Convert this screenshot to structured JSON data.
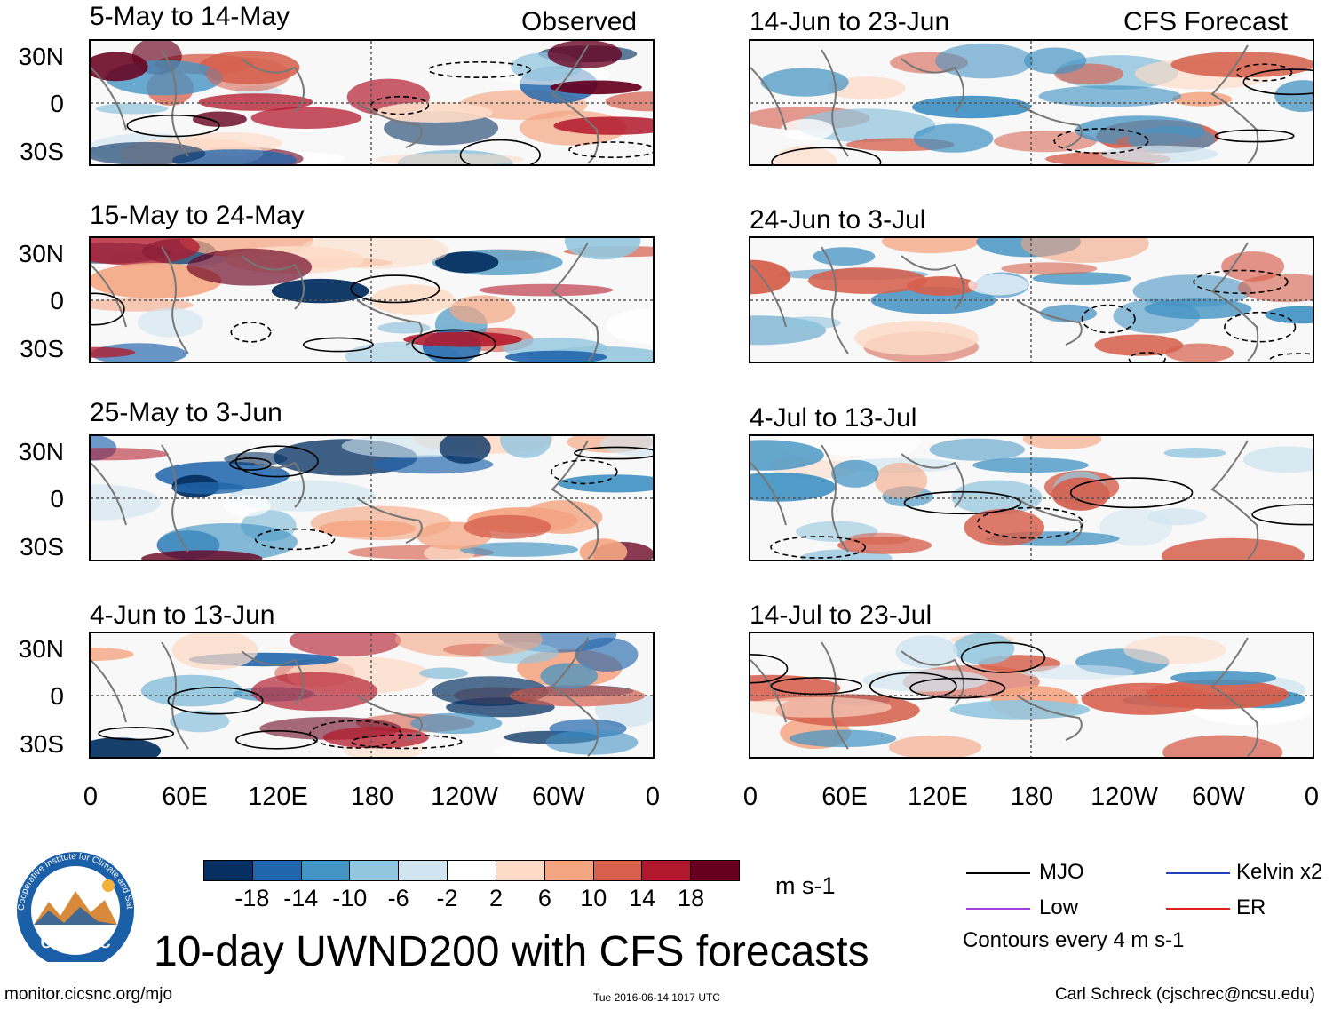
{
  "left_header": "Observed",
  "right_header": "CFS Forecast",
  "panels": [
    {
      "title": "5-May to 14-May"
    },
    {
      "title": "15-May to 24-May"
    },
    {
      "title": "25-May to 3-Jun"
    },
    {
      "title": "4-Jun to 13-Jun"
    },
    {
      "title": "14-Jun to 23-Jun"
    },
    {
      "title": "24-Jun to 3-Jul"
    },
    {
      "title": "4-Jul to 13-Jul"
    },
    {
      "title": "14-Jul to 23-Jul"
    }
  ],
  "lat_labels": [
    "30N",
    "0",
    "30S"
  ],
  "lon_labels": [
    "0",
    "60E",
    "120E",
    "180",
    "120W",
    "60W",
    "0"
  ],
  "colorbar": {
    "ticks": [
      "-18",
      "-14",
      "-10",
      "-6",
      "-2",
      "2",
      "6",
      "10",
      "14",
      "18"
    ],
    "colors": [
      "#053061",
      "#2166ac",
      "#4393c3",
      "#92c5de",
      "#d1e5f0",
      "#ffffff",
      "#fddbc7",
      "#f4a582",
      "#d6604d",
      "#b2182b",
      "#67001f"
    ],
    "units": "m s-1"
  },
  "legend": {
    "items": [
      {
        "label": "MJO",
        "color": "#000000"
      },
      {
        "label": "Kelvin x2",
        "color": "#2040c0"
      },
      {
        "label": "Low",
        "color": "#a040e0"
      },
      {
        "label": "ER",
        "color": "#e02020"
      }
    ],
    "note": "Contours every 4 m s-1"
  },
  "title": "10-day UWND200 with CFS forecasts",
  "logo_text": "cics.nc",
  "logo_ring_text": "Cooperative Institute for Climate and Satellites",
  "footer": {
    "url": "monitor.cicsnc.org/mjo",
    "timestamp": "Tue 2016-06-14 1017 UTC",
    "credit": "Carl Schreck (cjschrec@ncsu.edu)"
  }
}
